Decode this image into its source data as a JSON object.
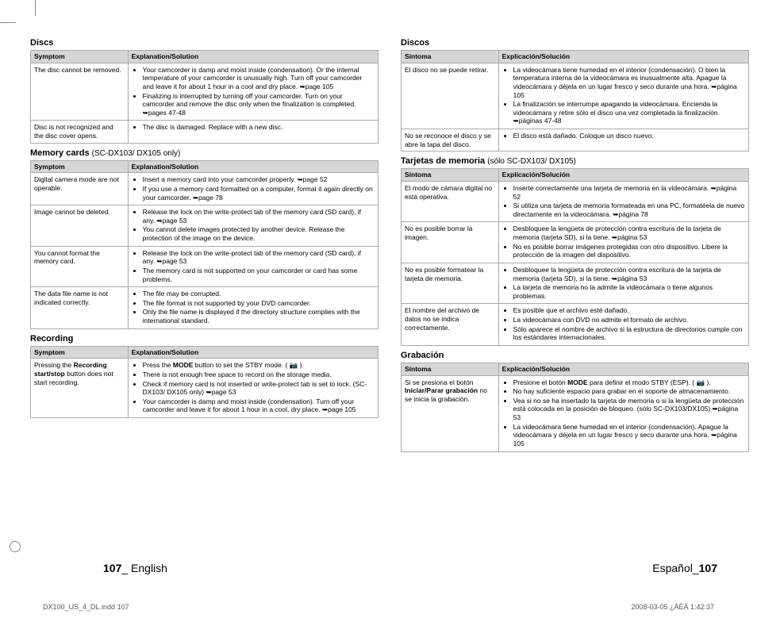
{
  "crop": true,
  "left": {
    "sections": [
      {
        "title": "Discs",
        "sub": "",
        "head": [
          "Symptom",
          "Explanation/Solution"
        ],
        "rows": [
          {
            "sym": "The disc cannot be removed.",
            "sol": [
              "Your camcorder is damp and moist inside (condensation). Or the internal temperature of your camcorder is unusually high. Turn off your camcorder and leave it for about 1 hour in a cool and dry place. ➥page 105",
              "Finalizing is interrupted by turning off your camcorder. Turn on your camcorder and remove the disc only when the finalization is completed. ➥pages 47-48"
            ]
          },
          {
            "sym": "Disc is not recognized and the disc cover opens.",
            "sol": [
              "The disc is damaged. Replace with a new disc."
            ]
          }
        ]
      },
      {
        "title": "Memory cards",
        "sub": "(SC-DX103/ DX105 only)",
        "head": [
          "Symptom",
          "Explanation/Solution"
        ],
        "rows": [
          {
            "sym": "Digital camera mode are not operable.",
            "sol": [
              "Insert a memory card into your camcorder properly. ➥page 52",
              "If you use a memory card formatted on a computer, format it again directly on your camcorder. ➥page 78"
            ]
          },
          {
            "sym": "Image cannot be deleted.",
            "sol": [
              "Release the lock on the write-protect tab of the memory card (SD card), if any. ➥page 53",
              "You cannot delete images protected by another device. Release the protection of the image on the device."
            ]
          },
          {
            "sym": "You cannot format the memory card.",
            "sol": [
              "Release the lock on the write-protect tab of the memory card (SD card), if any. ➥page 53",
              "The memory card is not supported on your camcorder or card has some problems."
            ]
          },
          {
            "sym": "The data file name is not indicated correctly.",
            "sol": [
              "The file may be corrupted.",
              "The file format is not supported by your DVD camcorder.",
              "Only the file name is displayed if the directory structure complies with the international standard."
            ]
          }
        ]
      },
      {
        "title": "Recording",
        "sub": "",
        "head": [
          "Symptom",
          "Explanation/Solution"
        ],
        "rows": [
          {
            "sym": "Pressing the <b>Recording start/stop</b> button does not start recording.",
            "sol": [
              "Press the <b>MODE</b> button to set the STBY mode. ( 📷 ).",
              "There is not enough free space to record on the storage media.",
              "Check if memory card is not inserted or write-protect tab is set to lock. (SC-DX103/ DX105 only) ➥page 53",
              "Your camcorder is damp and moist inside (condensation). Turn off your camcorder and leave it for about 1 hour in a cool, dry place. ➥page 105"
            ]
          }
        ]
      }
    ],
    "footer_num": "107",
    "footer_lang": "_ English"
  },
  "right": {
    "sections": [
      {
        "title": "Discos",
        "sub": "",
        "head": [
          "Síntoma",
          "Explicación/Solución"
        ],
        "rows": [
          {
            "sym": "El disco no se puede retirar.",
            "sol": [
              "La videocámara tiene humedad en el interior (condensación). O bien la temperatura interna de la videocámara es inusualmente alta. Apague la videocámara y déjela en un lugar fresco y seco durante una hora. ➥página 105",
              "La finalización se interrumpe apagando la videocámara. Encienda la videocámara y retire sólo el disco una vez completada la finalización. ➥páginas 47-48"
            ]
          },
          {
            "sym": "No se reconoce el disco y se abre la tapa del disco.",
            "sol": [
              "El disco está dañado. Coloque un disco nuevo."
            ]
          }
        ]
      },
      {
        "title": "Tarjetas de memoria",
        "sub": "(sólo SC-DX103/ DX105)",
        "head": [
          "Síntoma",
          "Explicación/Solución"
        ],
        "rows": [
          {
            "sym": "El modo de cámara digital no está operativa.",
            "sol": [
              "Inserte correctamente una tarjeta de memoria en la videocámara. ➥página 52",
              "Si utiliza una tarjeta de memoria formateada en una PC, formatéela de nuevo directamente en la videocámara. ➥página 78"
            ]
          },
          {
            "sym": "No es posible borrar la imagen.",
            "sol": [
              "Desbloquee la lengüeta de protección contra escritura de la tarjeta de memoria (tarjeta SD), si la tiene. ➥página 53",
              "No es posible borrar imágenes protegidas con otro dispositivo. Libere la protección de la imagen del dispositivo."
            ]
          },
          {
            "sym": "No es posible formatear la tarjeta de memoria.",
            "sol": [
              "Desbloquee la lengüeta de protección contra escritura de la tarjeta de memoria (tarjeta SD), si la tiene. ➥página 53",
              "La tarjeta de memoria no la admite la videocámara o tiene algunos problemas."
            ]
          },
          {
            "sym": "El nombre del archivo de datos no se indica correctamente.",
            "sol": [
              "Es posible que el archivo esté dañado.",
              "La videocámara con DVD no admite el formato de archivo.",
              "Sólo aparece el nombre de archivo si la estructura de directorios  cumple con los estándares internacionales."
            ]
          }
        ]
      },
      {
        "title": "Grabación",
        "sub": "",
        "head": [
          "Síntoma",
          "Explicación/Solución"
        ],
        "rows": [
          {
            "sym": "Si se presiona el botón <b>Iniciar/Parar grabación</b> no se inicia la grabación.",
            "sol": [
              "Presione el botón <b>MODE</b> para definir el modo  STBY (ESP). ( 📷 ).",
              "No hay  suficiente espacio para grabar en el soporte de almacenamiento.",
              "Vea si no se ha insertado la tarjeta de memoria o si la lengüeta de protección está colocada en la posición de bloqueo. (sólo SC-DX103/DX105) ➥página 53",
              "La videocámara tiene humedad en el interior (condensación). Apague la videocámara y déjela en un lugar fresco y seco durante una hora. ➥página 105"
            ]
          }
        ]
      }
    ],
    "footer_lang": "Español_",
    "footer_num": "107"
  },
  "docfile": "DX100_US_4_DL.indd   107",
  "docdate": "2008-03-05   ¿ÀÈÄ 1:42:37"
}
